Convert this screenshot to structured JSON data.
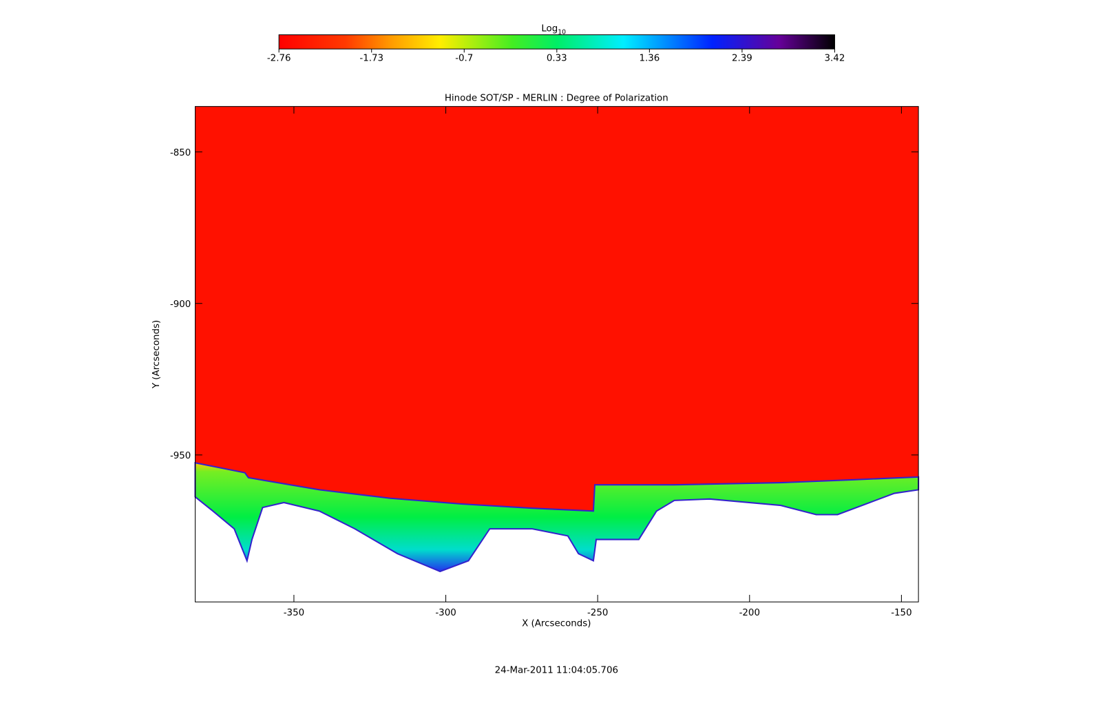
{
  "chart_data": {
    "type": "image",
    "title": "Hinode SOT/SP - MERLIN : Degree of Polarization",
    "x_label": "X (Arcseconds)",
    "y_label": "Y (Arcseconds)",
    "xlim": [
      -382.5,
      -144.4
    ],
    "xticks": [
      -350,
      -300,
      -250,
      -200,
      -150
    ],
    "ylim": [
      -998.5,
      -835
    ],
    "yticks": [
      -850,
      -900,
      -950
    ],
    "colorbar": {
      "label": "Log",
      "label_subscript": "10",
      "lim": [
        -2.76,
        3.42
      ],
      "ticks": [
        -2.76,
        -1.73,
        -0.7,
        0.33,
        1.36,
        2.39,
        3.42
      ]
    },
    "footer": "24-Mar-2011 11:04:05.706"
  }
}
